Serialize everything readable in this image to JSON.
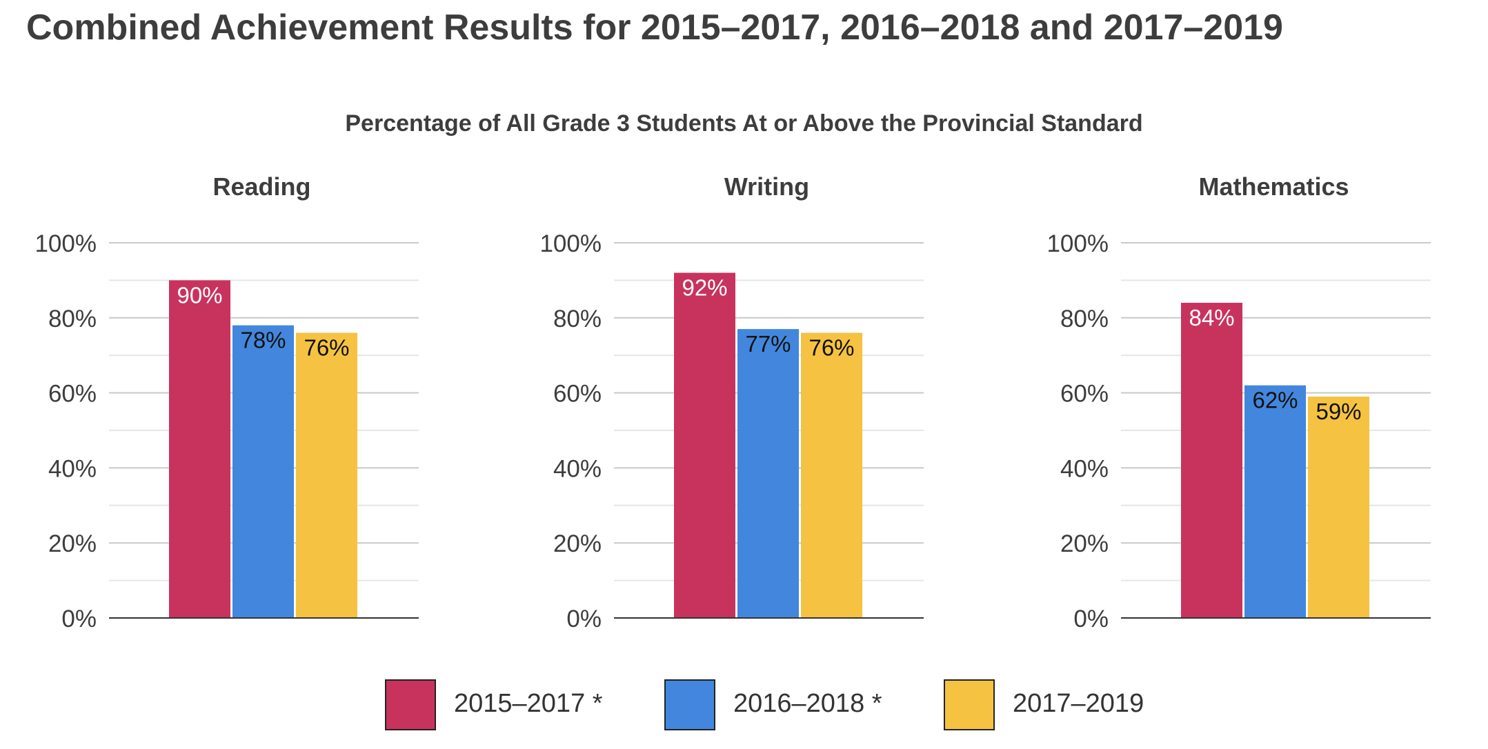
{
  "title": "Combined Achievement Results for 2015–2017, 2016–2018 and 2017–2019",
  "subtitle": "Percentage of All Grade 3 Students At or Above the Provincial Standard",
  "legend": [
    {
      "label": "2015–2017 *",
      "color": "#c8335e"
    },
    {
      "label": "2016–2018 *",
      "color": "#4287dd"
    },
    {
      "label": "2017–2019",
      "color": "#f5c242"
    }
  ],
  "chart_data": [
    {
      "type": "bar",
      "title": "Reading",
      "categories": [
        "2015–2017 *",
        "2016–2018 *",
        "2017–2019"
      ],
      "values": [
        90,
        78,
        76
      ],
      "data_labels": [
        "90%",
        "78%",
        "76%"
      ],
      "ylim": [
        0,
        100
      ],
      "yticks": [
        "0%",
        "20%",
        "40%",
        "60%",
        "80%",
        "100%"
      ]
    },
    {
      "type": "bar",
      "title": "Writing",
      "categories": [
        "2015–2017 *",
        "2016–2018 *",
        "2017–2019"
      ],
      "values": [
        92,
        77,
        76
      ],
      "data_labels": [
        "92%",
        "77%",
        "76%"
      ],
      "ylim": [
        0,
        100
      ],
      "yticks": [
        "0%",
        "20%",
        "40%",
        "60%",
        "80%",
        "100%"
      ]
    },
    {
      "type": "bar",
      "title": "Mathematics",
      "categories": [
        "2015–2017 *",
        "2016–2018 *",
        "2017–2019"
      ],
      "values": [
        84,
        62,
        59
      ],
      "data_labels": [
        "84%",
        "62%",
        "59%"
      ],
      "ylim": [
        0,
        100
      ],
      "yticks": [
        "0%",
        "20%",
        "40%",
        "60%",
        "80%",
        "100%"
      ]
    }
  ]
}
